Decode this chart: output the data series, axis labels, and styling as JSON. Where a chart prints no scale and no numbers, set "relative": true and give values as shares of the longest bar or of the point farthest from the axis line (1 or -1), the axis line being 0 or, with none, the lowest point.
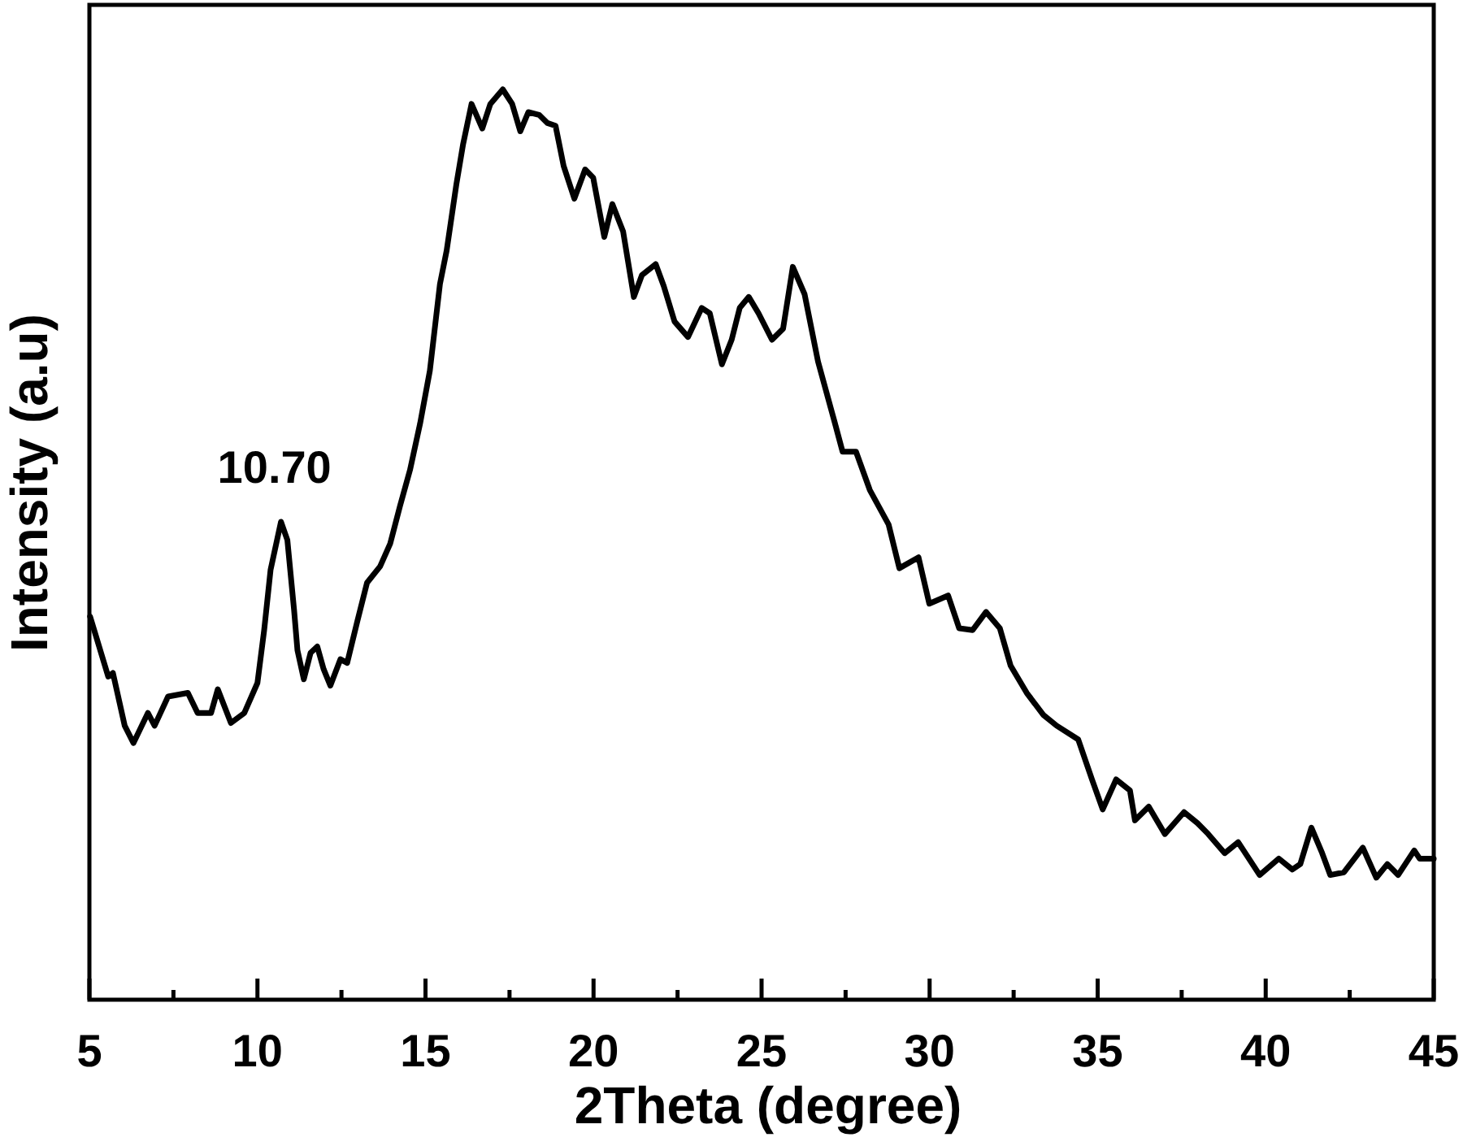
{
  "chart_data": {
    "type": "line",
    "xlabel": "2Theta (degree)",
    "ylabel": "Intensity (a.u)",
    "relative": true,
    "tick_labels": "x",
    "xlim": [
      5,
      45
    ],
    "xticks": [
      5,
      {
        "value": 7.5,
        "label": null
      },
      10,
      {
        "value": 12.5,
        "label": null
      },
      15,
      {
        "value": 17.5,
        "label": null
      },
      20,
      {
        "value": 22.5,
        "label": null
      },
      25,
      {
        "value": 27.5,
        "label": null
      },
      30,
      {
        "value": 32.5,
        "label": null
      },
      35,
      {
        "value": 37.5,
        "label": null
      },
      40,
      {
        "value": 42.5,
        "label": null
      },
      45
    ],
    "annotations": [
      {
        "text": "10.70",
        "x": 10.7,
        "y": 0.525
      }
    ],
    "series": [
      {
        "color": "#000000",
        "x": [
          5.02,
          5.56,
          5.7,
          6.05,
          6.31,
          6.74,
          6.94,
          7.34,
          7.93,
          8.22,
          8.62,
          8.82,
          9.21,
          9.61,
          10.0,
          10.2,
          10.39,
          10.7,
          10.89,
          11.09,
          11.19,
          11.38,
          11.58,
          11.78,
          11.97,
          12.17,
          12.47,
          12.67,
          12.96,
          13.26,
          13.65,
          13.95,
          14.24,
          14.54,
          14.84,
          15.13,
          15.43,
          15.63,
          15.92,
          16.12,
          16.37,
          16.69,
          16.93,
          17.3,
          17.58,
          17.82,
          18.06,
          18.38,
          18.63,
          18.87,
          19.11,
          19.43,
          19.75,
          19.99,
          20.32,
          20.56,
          20.88,
          21.2,
          21.44,
          21.85,
          22.09,
          22.41,
          22.81,
          23.22,
          23.46,
          23.82,
          24.11,
          24.35,
          24.62,
          24.91,
          25.31,
          25.64,
          25.93,
          26.28,
          26.68,
          27.17,
          27.41,
          27.81,
          28.22,
          28.78,
          29.1,
          29.67,
          29.99,
          30.55,
          30.88,
          31.28,
          31.68,
          32.09,
          32.41,
          32.89,
          33.38,
          33.78,
          34.42,
          34.83,
          35.15,
          35.55,
          35.96,
          36.11,
          36.52,
          37.0,
          37.57,
          37.97,
          38.29,
          38.78,
          39.18,
          39.82,
          40.39,
          40.79,
          41.03,
          41.36,
          41.68,
          41.92,
          42.33,
          42.89,
          43.29,
          43.62,
          43.94,
          44.42,
          44.58,
          45.0
        ],
        "values": [
          0.421,
          0.355,
          0.359,
          0.301,
          0.282,
          0.315,
          0.301,
          0.333,
          0.337,
          0.315,
          0.315,
          0.341,
          0.304,
          0.315,
          0.348,
          0.406,
          0.472,
          0.525,
          0.505,
          0.428,
          0.384,
          0.352,
          0.381,
          0.388,
          0.363,
          0.345,
          0.374,
          0.37,
          0.414,
          0.458,
          0.476,
          0.501,
          0.542,
          0.582,
          0.633,
          0.691,
          0.786,
          0.823,
          0.896,
          0.94,
          0.984,
          0.957,
          0.984,
          1.0,
          0.984,
          0.954,
          0.975,
          0.972,
          0.963,
          0.96,
          0.916,
          0.88,
          0.912,
          0.903,
          0.838,
          0.874,
          0.844,
          0.772,
          0.796,
          0.808,
          0.784,
          0.745,
          0.728,
          0.76,
          0.754,
          0.698,
          0.725,
          0.76,
          0.772,
          0.754,
          0.725,
          0.737,
          0.805,
          0.775,
          0.701,
          0.635,
          0.602,
          0.602,
          0.56,
          0.522,
          0.474,
          0.486,
          0.435,
          0.444,
          0.408,
          0.406,
          0.426,
          0.408,
          0.367,
          0.337,
          0.313,
          0.301,
          0.286,
          0.242,
          0.209,
          0.242,
          0.23,
          0.197,
          0.212,
          0.182,
          0.206,
          0.194,
          0.182,
          0.161,
          0.173,
          0.137,
          0.155,
          0.143,
          0.149,
          0.189,
          0.161,
          0.137,
          0.14,
          0.167,
          0.134,
          0.149,
          0.137,
          0.164,
          0.155,
          0.155
        ]
      }
    ]
  }
}
